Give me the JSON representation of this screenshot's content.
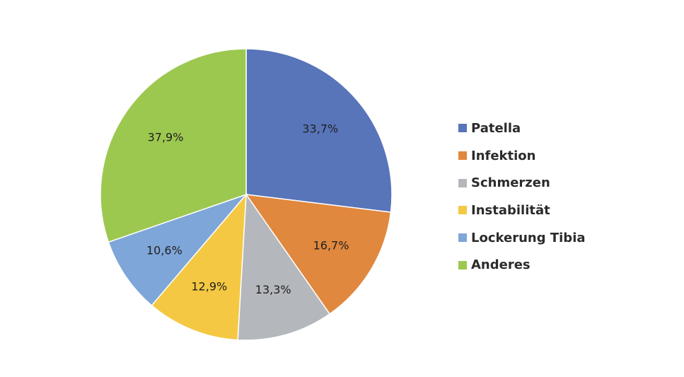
{
  "chart_data": {
    "type": "pie",
    "title": "",
    "slices": [
      {
        "label": "Patella",
        "value": 33.7,
        "display": "33,7%",
        "color": "#5875BA"
      },
      {
        "label": "Infektion",
        "value": 16.7,
        "display": "16,7%",
        "color": "#E0883E"
      },
      {
        "label": "Schmerzen",
        "value": 13.3,
        "display": "13,3%",
        "color": "#B4B7BB"
      },
      {
        "label": "Instabilität",
        "value": 12.9,
        "display": "12,9%",
        "color": "#F4C842"
      },
      {
        "label": "Lockerung Tibia",
        "value": 10.6,
        "display": "10,6%",
        "color": "#7EA6D8"
      },
      {
        "label": "Anderes",
        "value": 37.9,
        "display": "37,9%",
        "color": "#9DC850"
      }
    ],
    "legend": {
      "position": "right"
    }
  }
}
